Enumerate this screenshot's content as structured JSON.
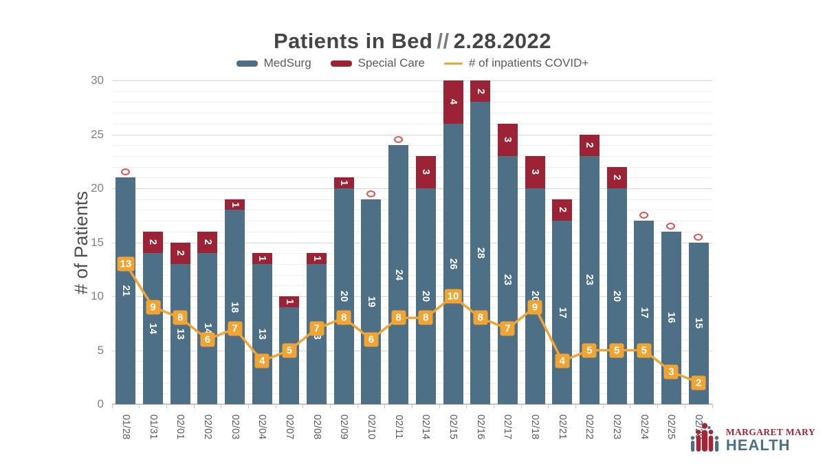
{
  "title": {
    "main": "Patients in Bed",
    "sep": "//",
    "date": "2.28.2022"
  },
  "legend": [
    {
      "label": "MedSurg",
      "swatch": "bar",
      "color": "#4d7086"
    },
    {
      "label": "Special Care",
      "swatch": "bar",
      "color": "#9b2335"
    },
    {
      "label": "# of inpatients COVID+",
      "swatch": "line",
      "color": "#f2a433"
    }
  ],
  "chart_data": {
    "type": "bar",
    "subtype": "stacked-bars-with-line",
    "categories": [
      "01/28",
      "01/31",
      "02/01",
      "02/02",
      "02/03",
      "02/04",
      "02/07",
      "02/08",
      "02/09",
      "02/10",
      "02/11",
      "02/14",
      "02/15",
      "02/16",
      "02/17",
      "02/18",
      "02/21",
      "02/22",
      "02/23",
      "02/24",
      "02/25",
      "02/28"
    ],
    "series": [
      {
        "name": "MedSurg",
        "type": "bar",
        "color": "#4d7086",
        "values": [
          21,
          14,
          13,
          14,
          18,
          13,
          9,
          13,
          20,
          19,
          24,
          20,
          26,
          28,
          23,
          20,
          17,
          23,
          20,
          17,
          16,
          15
        ]
      },
      {
        "name": "Special Care",
        "type": "bar",
        "color": "#9b2335",
        "values": [
          0,
          2,
          2,
          2,
          1,
          1,
          1,
          1,
          1,
          0,
          0,
          3,
          4,
          2,
          3,
          3,
          2,
          2,
          2,
          0,
          0,
          0
        ]
      },
      {
        "name": "# of inpatients COVID+",
        "type": "line",
        "color": "#f2a433",
        "values": [
          13,
          9,
          8,
          6,
          7,
          4,
          5,
          7,
          8,
          6,
          8,
          8,
          10,
          8,
          7,
          9,
          4,
          5,
          5,
          5,
          3,
          2
        ]
      }
    ],
    "title": "Patients in Bed // 2.28.2022",
    "xlabel": "",
    "ylabel": "# of Patients",
    "ylim": [
      0,
      30
    ],
    "yticks": [
      0,
      5,
      10,
      15,
      20,
      25,
      30
    ],
    "minor_grid_interval": 1,
    "grid": true,
    "legend_position": "top",
    "zero_label_style": "red-ring",
    "zero_marker_color": "#e3504e",
    "bar_label_color": "#ffffff"
  },
  "logo": {
    "line1": "MARGARET MARY",
    "line2": "HEALTH",
    "color1": "#a32638",
    "color2": "#4a7086"
  }
}
